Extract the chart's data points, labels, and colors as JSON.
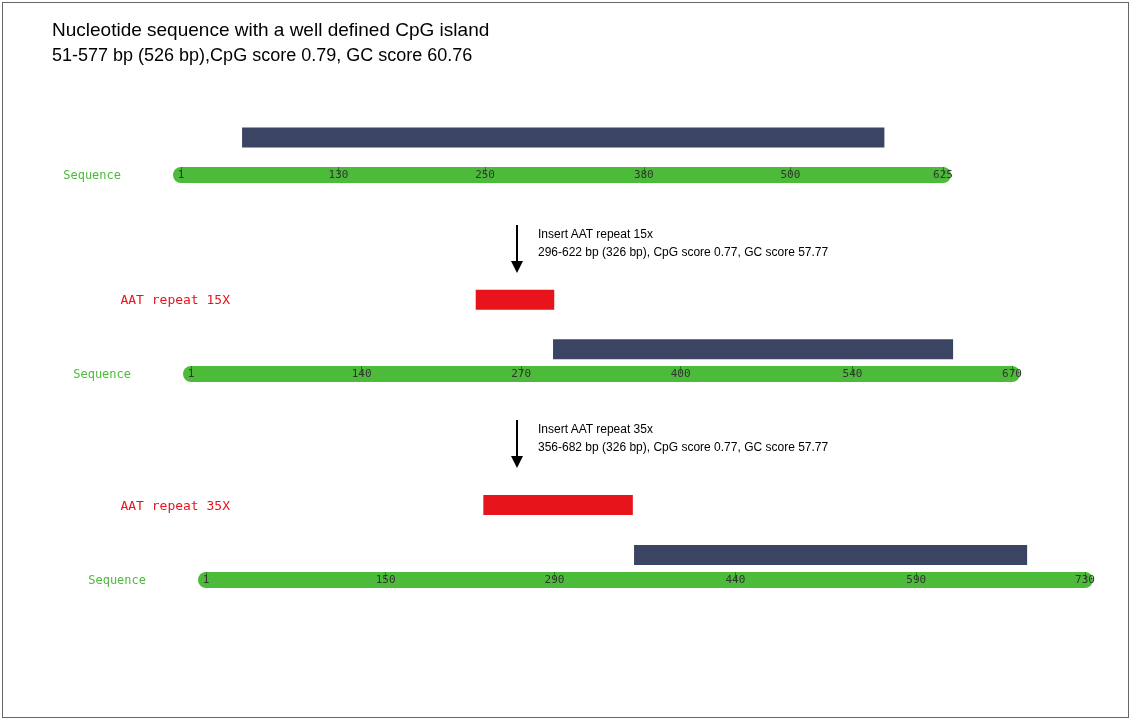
{
  "chart_data": [
    {
      "type": "bar",
      "title": "Nucleotide sequence with a well defined CpG island",
      "subtitle": "51-577 bp (526 bp),CpG score 0.79, GC score 60.76",
      "orientation": "horizontal",
      "categories": [
        null
      ],
      "base": [
        51
      ],
      "values": [
        526
      ],
      "colors": [
        "#3b4463"
      ],
      "xlabel": "Sequence",
      "xlim": [
        1,
        625
      ],
      "xticks": [
        1,
        130,
        250,
        380,
        500,
        625
      ]
    },
    {
      "type": "bar",
      "annotations": [
        "Insert AAT repeat 15x",
        "296-622 bp (326 bp), CpG score 0.77, GC score 57.77"
      ],
      "orientation": "horizontal",
      "categories": [
        "AAT repeat 15X",
        null
      ],
      "base": [
        233,
        296
      ],
      "values": [
        64,
        326
      ],
      "colors": [
        "#e8141c",
        "#3b4463"
      ],
      "xlabel": "Sequence",
      "xlim": [
        1,
        670
      ],
      "xticks": [
        1,
        140,
        270,
        400,
        540,
        670
      ]
    },
    {
      "type": "bar",
      "annotations": [
        "Insert AAT repeat 35x",
        "356-682 bp (326 bp), CpG score 0.77, GC score 57.77"
      ],
      "orientation": "horizontal",
      "categories": [
        "AAT repeat 35X",
        null
      ],
      "base": [
        231,
        356
      ],
      "values": [
        124,
        326
      ],
      "colors": [
        "#e8141c",
        "#3b4463"
      ],
      "xlabel": "Sequence",
      "xlim": [
        1,
        730
      ],
      "xticks": [
        1,
        150,
        290,
        440,
        590,
        730
      ]
    }
  ]
}
